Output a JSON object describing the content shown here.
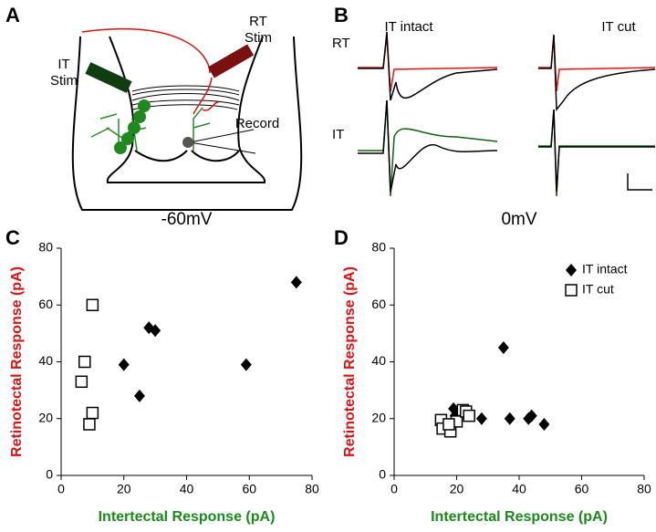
{
  "panel_labels": [
    "A",
    "B",
    "C",
    "D"
  ],
  "diagram": {
    "rt_stim": [
      "RT",
      "Stim"
    ],
    "it_stim": [
      "IT",
      "Stim"
    ],
    "record": "Record"
  },
  "traces": {
    "col_titles": [
      "IT intact",
      "IT cut"
    ],
    "row_labels": [
      "RT",
      "IT"
    ]
  },
  "chart_data": [
    {
      "type": "scatter",
      "title": "-60mV",
      "xlabel": "Intertectal Response (pA)",
      "ylabel": "Retinotectal Response (pA)",
      "xlabel_color": "#1a8a1a",
      "ylabel_color": "#e01010",
      "xlim": [
        0,
        80
      ],
      "ylim": [
        0,
        80
      ],
      "xticks": [
        0,
        20,
        40,
        60,
        80
      ],
      "yticks": [
        0,
        20,
        40,
        60,
        80
      ],
      "series": [
        {
          "color": "#000000",
          "marker": "diamond",
          "x": [
            20,
            25,
            28,
            30,
            59,
            75
          ],
          "y": [
            39,
            28,
            52,
            51,
            39,
            68
          ]
        },
        {
          "color": "#000000",
          "marker": "open-square",
          "x": [
            10,
            7.5,
            6.5,
            10,
            9
          ],
          "y": [
            60,
            40,
            33,
            22,
            18
          ]
        }
      ]
    },
    {
      "type": "scatter",
      "title": "0mV",
      "xlabel": "Intertectal Response (pA)",
      "ylabel": "Retinotectal Response (pA)",
      "xlabel_color": "#1a8a1a",
      "ylabel_color": "#e01010",
      "legend": "upper right",
      "xlim": [
        0,
        80
      ],
      "ylim": [
        0,
        80
      ],
      "xticks": [
        0,
        20,
        40,
        60,
        80
      ],
      "yticks": [
        0,
        20,
        40,
        60,
        80
      ],
      "series": [
        {
          "name": "IT intact",
          "color": "#000000",
          "marker": "diamond",
          "x": [
            19,
            19,
            19.5,
            28,
            35,
            37,
            43,
            44,
            48
          ],
          "y": [
            18,
            23.5,
            21,
            20,
            45,
            20,
            20,
            21,
            18
          ]
        },
        {
          "name": "IT cut",
          "color": "#000000",
          "marker": "open-square",
          "x": [
            15,
            15.5,
            18,
            20,
            22,
            23,
            24,
            17.5
          ],
          "y": [
            19.5,
            16.5,
            15.5,
            19,
            23,
            22.5,
            21,
            18
          ]
        }
      ]
    }
  ]
}
